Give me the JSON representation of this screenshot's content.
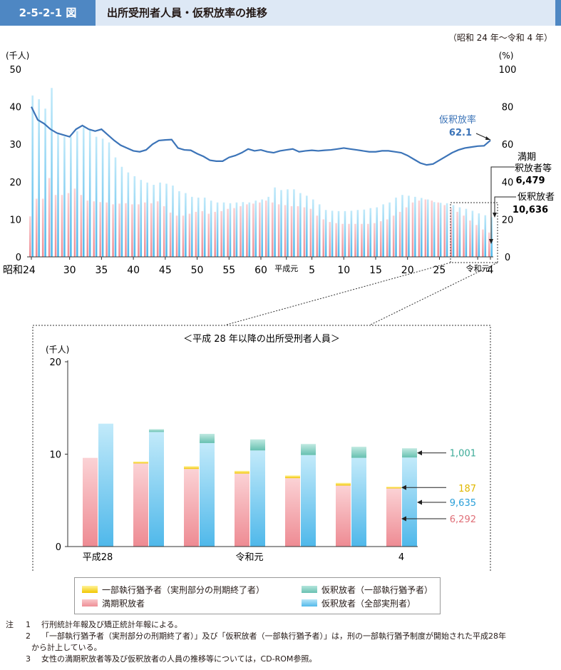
{
  "header": {
    "figure_number": "2-5-2-1 図",
    "title": "出所受刑者人員・仮釈放率の推移"
  },
  "period": "（昭和 24 年～令和 4 年）",
  "colors": {
    "parole_full": "#6ec8ee",
    "expiry": "#f2a3a8",
    "parole_partial": "#7fcdbf",
    "partial_expiry": "#f5d200",
    "rate_line": "#3c74b8",
    "header_blue": "#4e87c3"
  },
  "chart_data": [
    {
      "type": "bar",
      "x_labels": [
        "昭和24",
        "30",
        "35",
        "40",
        "45",
        "50",
        "55",
        "60",
        "平成元",
        "5",
        "10",
        "15",
        "20",
        "25",
        "令和元",
        "4"
      ],
      "left_axis_unit": "(千人)",
      "right_axis_unit": "(%)",
      "left_ticks": [
        "50",
        "40",
        "30",
        "20",
        "10",
        "0"
      ],
      "right_ticks": [
        "100",
        "80",
        "60",
        "40",
        "20",
        "0"
      ],
      "ylim_left": [
        0,
        50
      ],
      "ylim_right": [
        0,
        100
      ],
      "series": [
        {
          "name": "仮釈放者",
          "values": [
            43.0,
            42.0,
            39.5,
            45.0,
            33.0,
            32.0,
            32.0,
            33.5,
            34.5,
            34.0,
            32.0,
            31.5,
            30.5,
            26.5,
            24.0,
            22.5,
            21.5,
            20.5,
            19.8,
            19.2,
            19.8,
            19.5,
            19.0,
            17.5,
            17.0,
            16.0,
            15.8,
            15.8,
            15.0,
            14.5,
            14.5,
            14.3,
            14.5,
            14.6,
            14.5,
            15.0,
            15.3,
            16.0,
            18.5,
            17.8,
            18.0,
            18.0,
            17.0,
            16.3,
            15.3,
            14.0,
            12.5,
            12.3,
            12.2,
            12.2,
            12.3,
            12.5,
            12.6,
            13.0,
            13.2,
            14.0,
            14.5,
            15.8,
            16.5,
            16.3,
            16.0,
            15.7,
            15.3,
            14.6,
            14.4,
            14.3,
            13.8,
            13.2,
            12.8,
            12.3,
            11.6,
            11.1,
            10.6
          ]
        },
        {
          "name": "満期釈放者等",
          "values": [
            10.8,
            15.5,
            15.5,
            21.0,
            16.5,
            16.5,
            17.0,
            18.2,
            16.5,
            15.0,
            14.8,
            14.6,
            14.5,
            14.0,
            14.2,
            14.3,
            14.0,
            14.0,
            14.5,
            14.3,
            14.8,
            13.5,
            11.8,
            11.0,
            11.0,
            11.5,
            12.0,
            12.2,
            11.5,
            12.0,
            12.2,
            12.8,
            13.0,
            13.5,
            14.0,
            14.2,
            14.5,
            15.0,
            14.5,
            14.0,
            13.8,
            13.5,
            13.5,
            13.2,
            12.8,
            11.0,
            10.0,
            9.3,
            9.0,
            8.8,
            8.8,
            8.8,
            8.8,
            8.8,
            9.0,
            9.5,
            10.0,
            11.0,
            12.0,
            13.2,
            14.5,
            15.0,
            15.3,
            15.0,
            14.5,
            13.8,
            13.0,
            12.0,
            11.0,
            9.7,
            8.5,
            7.3,
            6.5
          ]
        },
        {
          "name": "仮釈放率",
          "values": [
            80.0,
            73.0,
            71.0,
            68.0,
            66.0,
            65.0,
            64.0,
            68.0,
            70.0,
            68.0,
            67.0,
            68.0,
            65.0,
            62.0,
            59.5,
            58.0,
            56.5,
            56.0,
            57.0,
            60.0,
            62.0,
            62.3,
            62.5,
            58.0,
            57.0,
            56.8,
            55.0,
            53.5,
            51.5,
            51.0,
            51.0,
            53.0,
            54.0,
            55.5,
            57.5,
            56.5,
            57.0,
            56.0,
            55.5,
            56.5,
            57.0,
            57.5,
            56.0,
            56.5,
            56.8,
            56.5,
            56.8,
            57.0,
            57.5,
            58.0,
            57.5,
            57.0,
            56.5,
            56.0,
            56.0,
            56.5,
            56.5,
            56.0,
            55.5,
            54.0,
            52.0,
            50.0,
            49.0,
            49.5,
            51.5,
            53.5,
            55.5,
            57.0,
            58.0,
            58.5,
            59.0,
            59.2,
            62.1
          ]
        }
      ],
      "annotations": {
        "rate_label": "仮釈放率",
        "rate_value": "62.1",
        "expiry_label_1": "満期",
        "expiry_label_2": "釈放者等",
        "expiry_value": "6,479",
        "parole_label": "仮釈放者",
        "parole_value": "10,636"
      }
    },
    {
      "type": "bar",
      "title": "＜平成 28 年以降の出所受刑者人員＞",
      "y_unit": "(千人)",
      "y_ticks": [
        "20",
        "10",
        "0"
      ],
      "ylim": [
        0,
        20
      ],
      "categories": [
        "平成28",
        "",
        "",
        "令和元",
        "",
        "",
        "4"
      ],
      "category_labels": [
        "平成28",
        "令和元",
        "4"
      ],
      "series": [
        {
          "name": "満期釈放者",
          "values": [
            9.6,
            9.0,
            8.4,
            7.9,
            7.4,
            6.6,
            6.292
          ]
        },
        {
          "name": "一部執行猶予者（実刑部分の刑期終了者）",
          "values": [
            0.0,
            0.2,
            0.3,
            0.3,
            0.3,
            0.3,
            0.187
          ]
        },
        {
          "name": "仮釈放者（全部実刑者）",
          "values": [
            13.3,
            12.4,
            11.2,
            10.4,
            9.9,
            9.6,
            9.635
          ]
        },
        {
          "name": "仮釈放者（一部執行猶予者）",
          "values": [
            0.0,
            0.3,
            1.0,
            1.2,
            1.2,
            1.2,
            1.001
          ]
        }
      ],
      "value_labels": {
        "parole_partial": "1,001",
        "partial_expiry": "187",
        "parole_full": "9,635",
        "expiry": "6,292"
      }
    }
  ],
  "legend": {
    "partial_expiry": "一部執行猶予者（実刑部分の刑期終了者）",
    "expiry": "満期釈放者",
    "parole_partial": "仮釈放者（一部執行猶予者）",
    "parole_full": "仮釈放者（全部実刑者）"
  },
  "notes": {
    "mark": "注",
    "n1_no": "1",
    "n1": "行刑統計年報及び矯正統計年報による。",
    "n2_no": "2",
    "n2a": "「一部執行猶予者（実刑部分の刑期終了者）」及び「仮釈放者（一部執行猶予者）」は，刑の一部執行猶予制度が開始された平成28年",
    "n2b": "から計上している。",
    "n3_no": "3",
    "n3": "女性の満期釈放者等及び仮釈放者の人員の推移等については，CD-ROM参照。"
  }
}
